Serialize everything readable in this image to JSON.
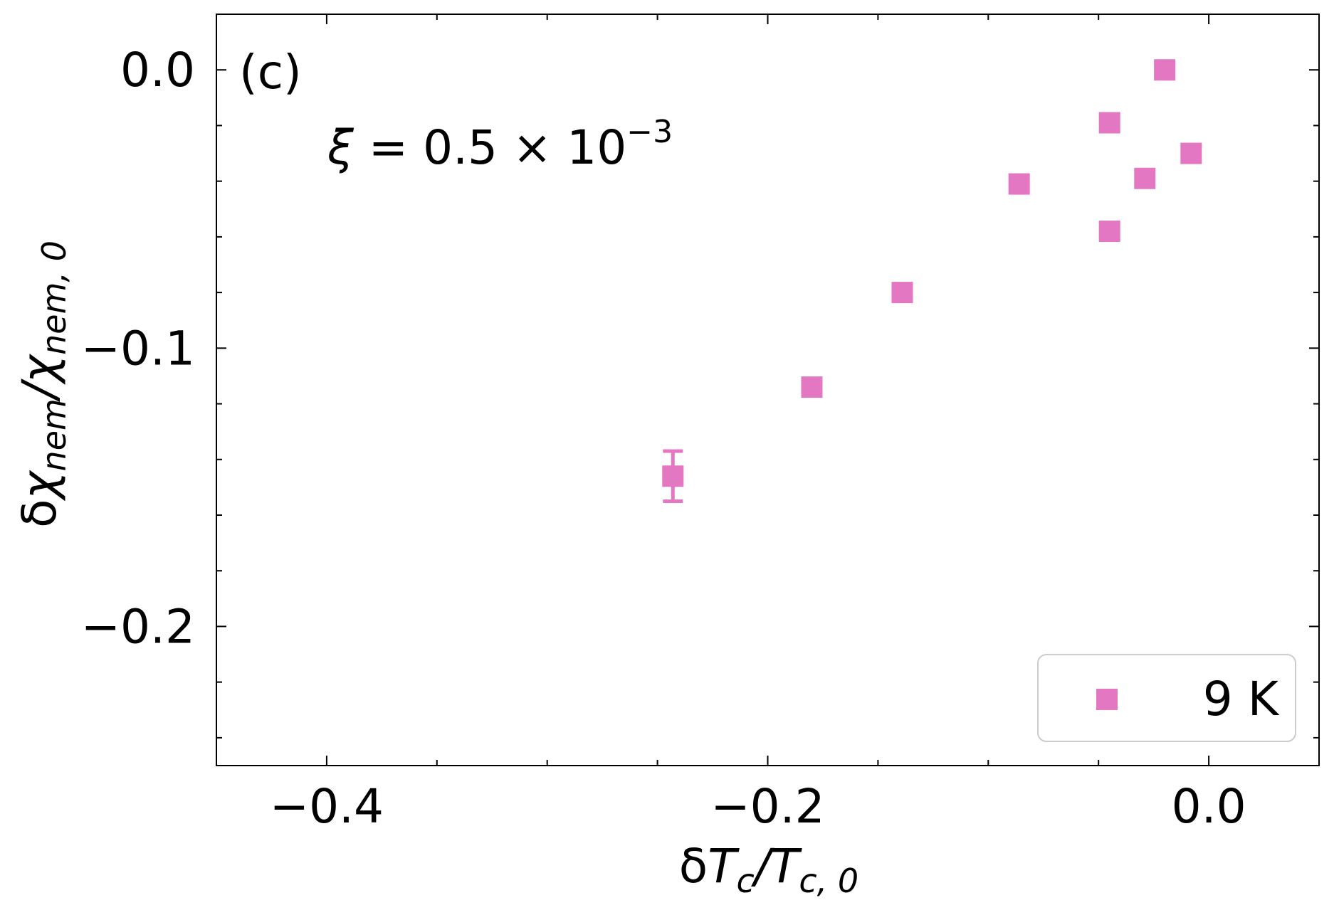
{
  "chart_data": {
    "type": "scatter",
    "panel_label": "(c)",
    "annotation": {
      "lhs": "ξ",
      "eq": " = 0.5 × 10",
      "sup": "−3"
    },
    "xlabel": {
      "delta": "δ",
      "T": "T",
      "c1": "c",
      "slash": "/",
      "T2": "T",
      "c2": "c, 0"
    },
    "ylabel": {
      "delta": "δ",
      "chi1": "χ",
      "sub1": "nem",
      "slash": "/",
      "chi2": "χ",
      "sub2": "nem, 0"
    },
    "xlim": [
      -0.45,
      0.05
    ],
    "ylim": [
      -0.25,
      0.02
    ],
    "xticks": [
      {
        "value": -0.4,
        "label": "−0.4"
      },
      {
        "value": -0.2,
        "label": "−0.2"
      },
      {
        "value": 0.0,
        "label": "0.0"
      }
    ],
    "yticks": [
      {
        "value": 0.0,
        "label": "0.0"
      },
      {
        "value": -0.1,
        "label": "−0.1"
      },
      {
        "value": -0.2,
        "label": "−0.2"
      }
    ],
    "x_minor_step": 0.05,
    "y_minor_step": 0.02,
    "color": "#e377c2",
    "legend": {
      "position": "lower right",
      "label": "9 K"
    },
    "series": [
      {
        "name": "9 K",
        "points": [
          {
            "x": -0.243,
            "y": -0.146,
            "yerr": 0.009
          },
          {
            "x": -0.18,
            "y": -0.114,
            "yerr": 0.002
          },
          {
            "x": -0.139,
            "y": -0.08,
            "yerr": 0.001
          },
          {
            "x": -0.086,
            "y": -0.041,
            "yerr": 0.001
          },
          {
            "x": -0.045,
            "y": -0.019,
            "yerr": 0.001
          },
          {
            "x": -0.045,
            "y": -0.058,
            "yerr": 0.001
          },
          {
            "x": -0.029,
            "y": -0.039,
            "yerr": 0.001
          },
          {
            "x": -0.02,
            "y": 0.0,
            "yerr": 0.001
          },
          {
            "x": -0.008,
            "y": -0.03,
            "yerr": 0.001
          }
        ]
      }
    ]
  }
}
